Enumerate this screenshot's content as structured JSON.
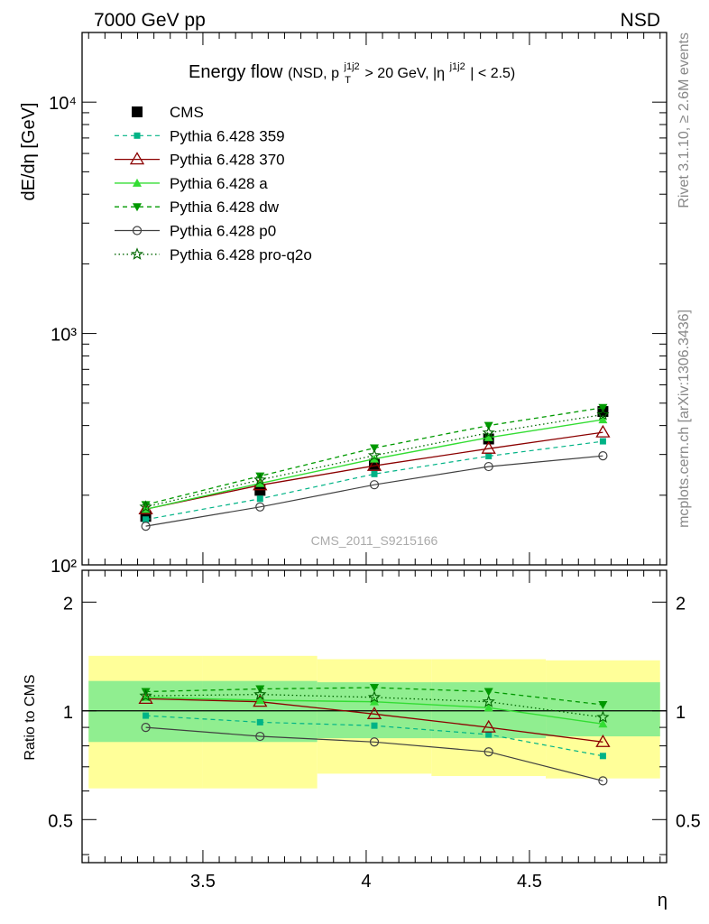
{
  "header": {
    "left": "7000 GeV pp",
    "right": "NSD"
  },
  "side_labels": {
    "rivet": "Rivet 3.1.10, ≥ 2.6M events",
    "mcplots": "mcplots.cern.ch [arXiv:1306.3436]"
  },
  "watermark": "CMS_2011_S9215166",
  "title": {
    "main": "Energy flow",
    "detail_a": "(NSD, p",
    "detail_sup1": "j1j2",
    "detail_sub1": "T",
    "detail_b": " > 20 GeV, |η",
    "detail_sup2": "j1j2",
    "detail_c": "| < 2.5)"
  },
  "colors": {
    "band_inner": "#90ee90",
    "band_outer": "#ffff99",
    "cms": "#000000",
    "p359": "#00b386",
    "p370": "#8b0000",
    "pa": "#33dd33",
    "pdw": "#009900",
    "pp0": "#404040",
    "pq2o": "#006600"
  },
  "chart_data": [
    {
      "type": "line",
      "title": "Energy flow (NSD, pT j1j2 > 20 GeV, |η j1j2| < 2.5)",
      "xlabel": "η",
      "ylabel": "dE/dη [GeV]",
      "xlim": [
        3.13,
        4.92
      ],
      "ylim": [
        100,
        20000
      ],
      "yscale": "log",
      "ytick_labels": [
        "10²",
        "10³",
        "10⁴"
      ],
      "legend": "top-left",
      "x": [
        3.325,
        3.675,
        4.025,
        4.375,
        4.725
      ],
      "series": [
        {
          "name": "CMS",
          "values": [
            162,
            210,
            272,
            350,
            460
          ]
        },
        {
          "name": "Pythia 6.428 359",
          "values": [
            157,
            193,
            247,
            295,
            342
          ]
        },
        {
          "name": "Pythia 6.428 370",
          "values": [
            174,
            221,
            268,
            318,
            374
          ]
        },
        {
          "name": "Pythia 6.428 a",
          "values": [
            174,
            225,
            287,
            355,
            424
          ]
        },
        {
          "name": "Pythia 6.428 dw",
          "values": [
            182,
            242,
            320,
            400,
            478
          ]
        },
        {
          "name": "Pythia 6.428 p0",
          "values": [
            147,
            178,
            222,
            266,
            296
          ]
        },
        {
          "name": "Pythia 6.428 pro-q2o",
          "values": [
            178,
            233,
            297,
            372,
            446
          ]
        }
      ]
    },
    {
      "type": "line",
      "xlabel": "η",
      "ylabel": "Ratio to CMS",
      "xlim": [
        3.13,
        4.92
      ],
      "ylim": [
        0.38,
        2.45
      ],
      "yscale": "log",
      "xtick_labels": [
        "3.5",
        "4",
        "4.5"
      ],
      "ytick_labels": [
        "0.5",
        "1",
        "2"
      ],
      "x": [
        3.325,
        3.675,
        4.025,
        4.375,
        4.725
      ],
      "bands": {
        "edges": [
          3.15,
          3.5,
          3.85,
          4.2,
          4.55,
          4.9
        ],
        "inner_lo": [
          0.82,
          0.82,
          0.84,
          0.84,
          0.85
        ],
        "inner_hi": [
          1.21,
          1.21,
          1.2,
          1.2,
          1.2
        ],
        "outer_lo": [
          0.61,
          0.61,
          0.67,
          0.66,
          0.65
        ],
        "outer_hi": [
          1.42,
          1.42,
          1.39,
          1.39,
          1.38
        ]
      },
      "series": [
        {
          "name": "Pythia 6.428 359",
          "values": [
            0.97,
            0.93,
            0.91,
            0.86,
            0.75
          ]
        },
        {
          "name": "Pythia 6.428 370",
          "values": [
            1.08,
            1.06,
            0.98,
            0.9,
            0.82
          ]
        },
        {
          "name": "Pythia 6.428 a",
          "values": [
            1.09,
            1.07,
            1.06,
            1.02,
            0.92
          ]
        },
        {
          "name": "Pythia 6.428 dw",
          "values": [
            1.13,
            1.15,
            1.16,
            1.13,
            1.04
          ]
        },
        {
          "name": "Pythia 6.428 p0",
          "values": [
            0.9,
            0.85,
            0.82,
            0.77,
            0.64
          ]
        },
        {
          "name": "Pythia 6.428 pro-q2o",
          "values": [
            1.1,
            1.11,
            1.09,
            1.06,
            0.96
          ]
        }
      ]
    }
  ]
}
